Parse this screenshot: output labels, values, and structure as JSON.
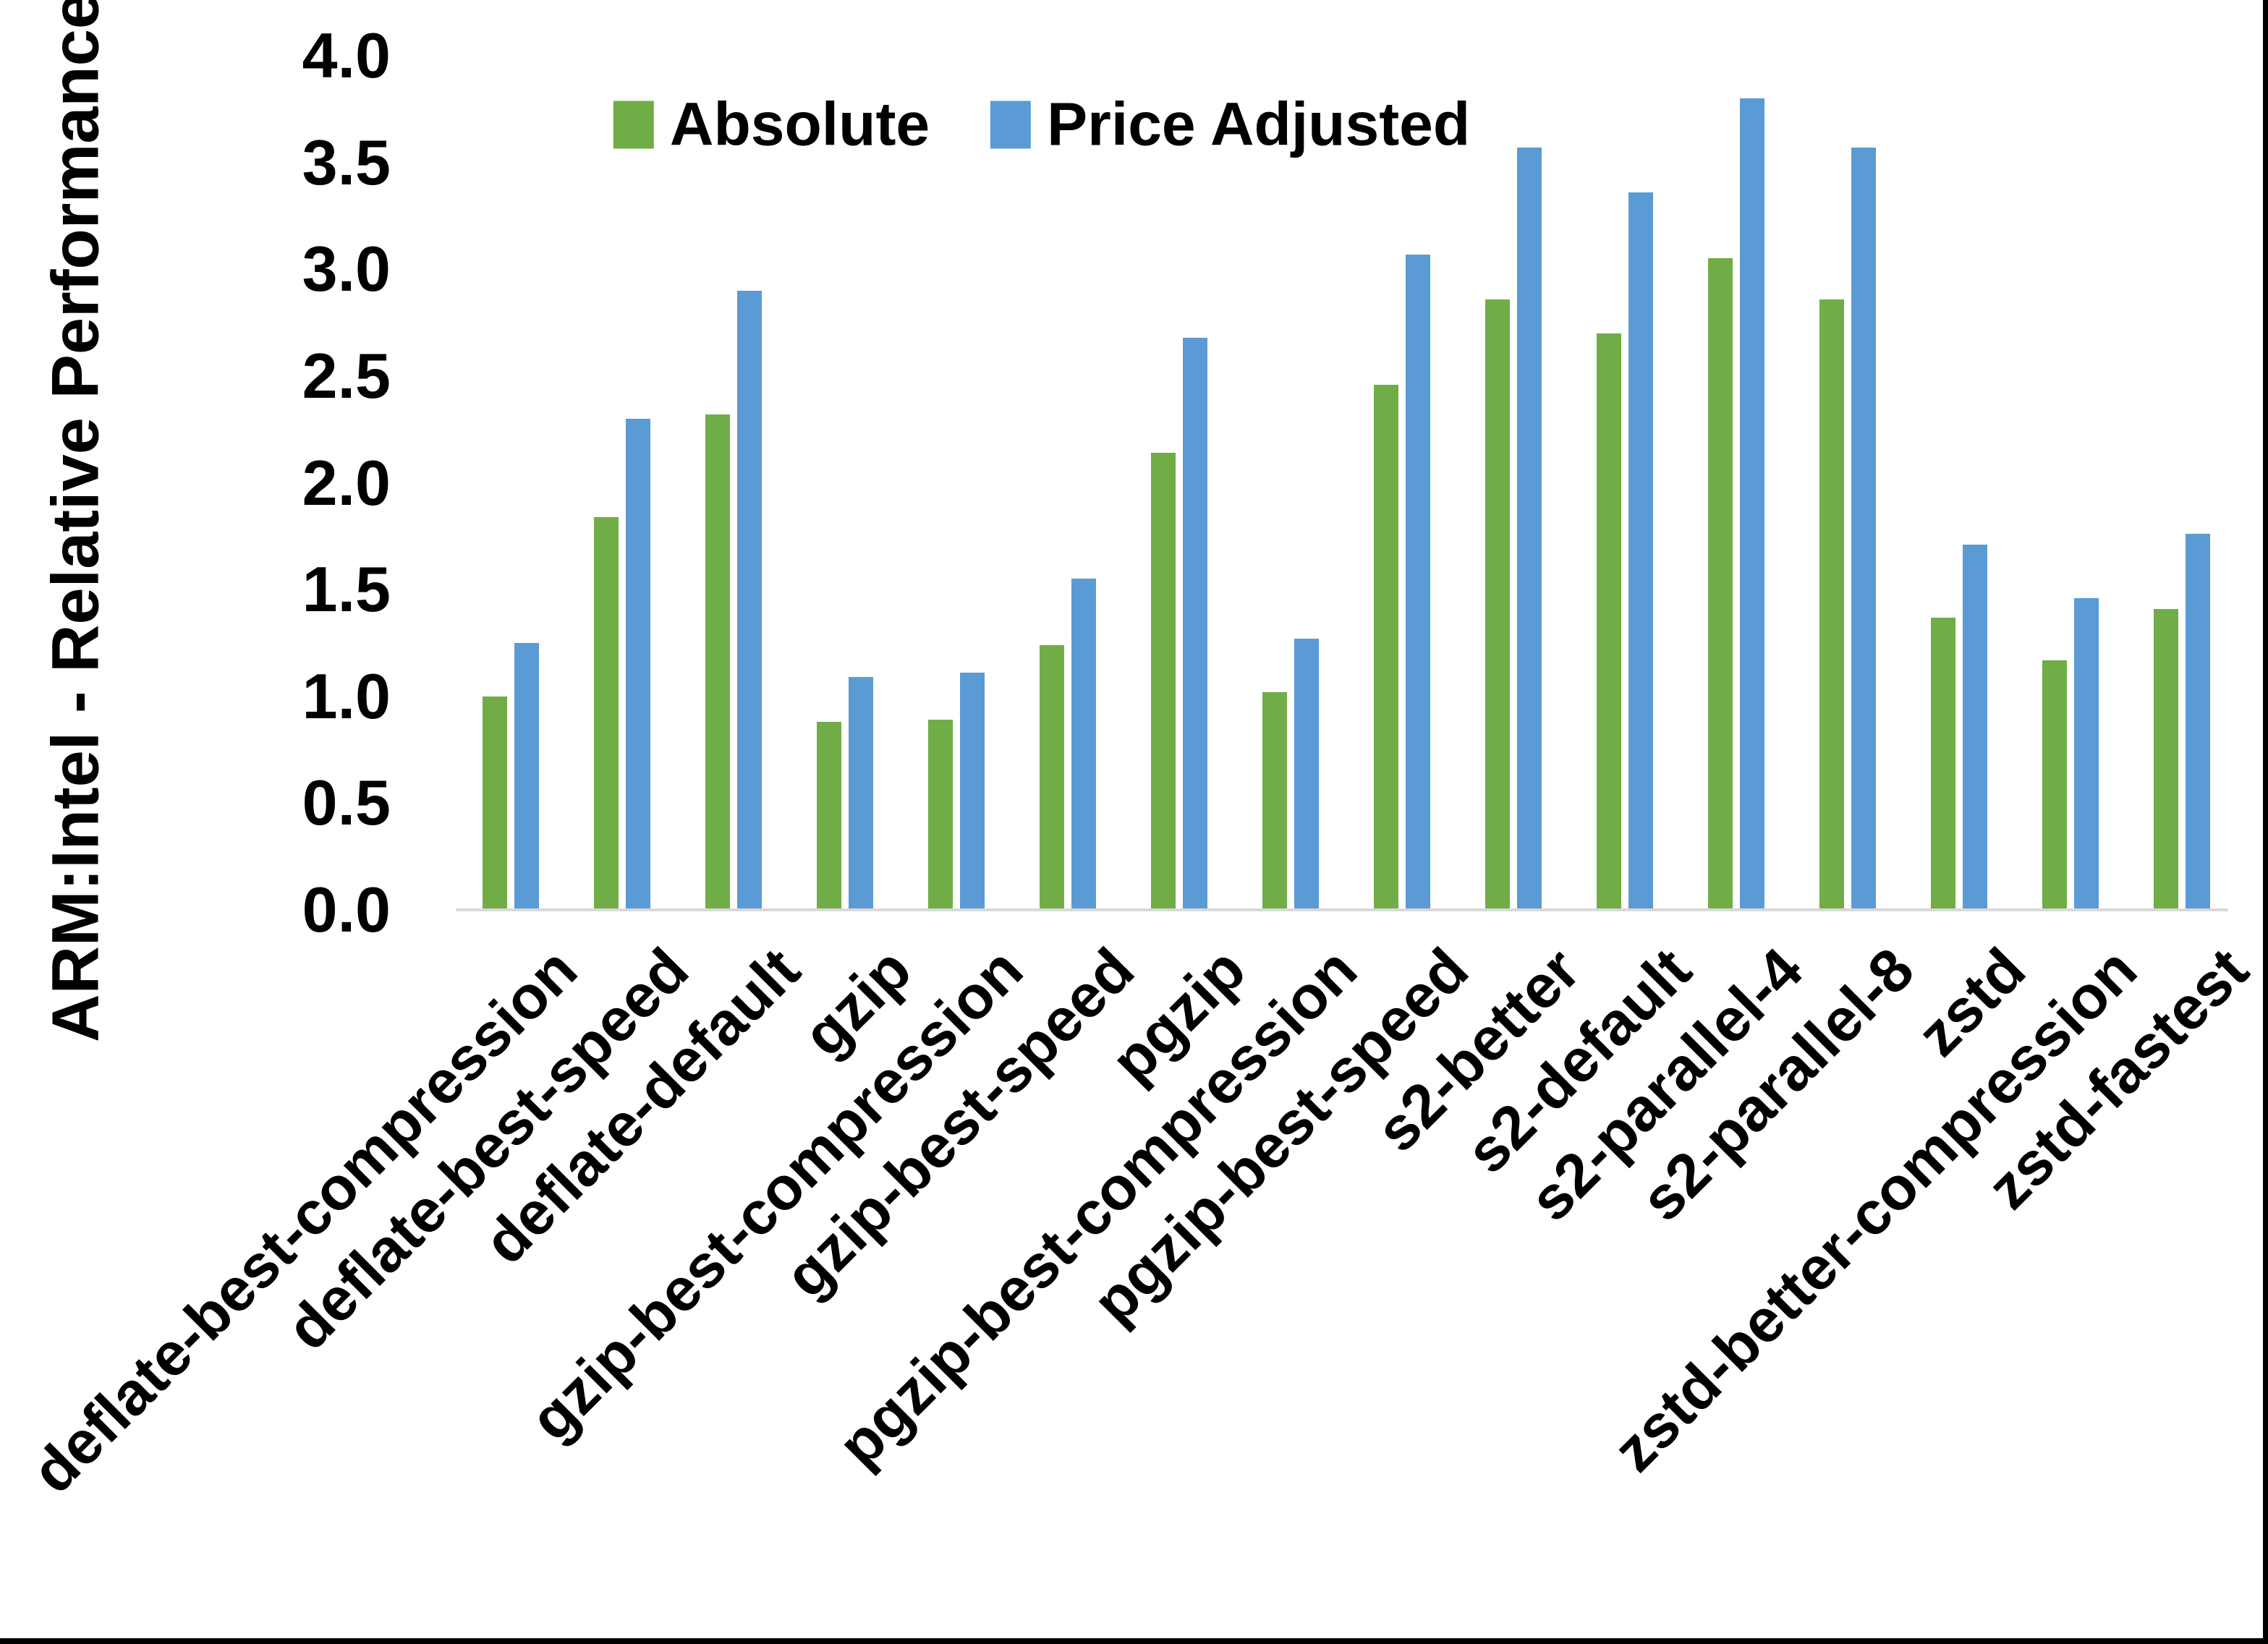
{
  "figure": {
    "y_axis_title": "ARM:Intel - Relative Performance",
    "y_tick_labels": [
      "0.0",
      "0.5",
      "1.0",
      "1.5",
      "2.0",
      "2.5",
      "3.0",
      "3.5",
      "4.0"
    ]
  },
  "chart_data": {
    "type": "bar",
    "title": "",
    "xlabel": "",
    "ylabel": "ARM:Intel - Relative Performance",
    "ylim": [
      0,
      4
    ],
    "y_tick_step": 0.5,
    "grid": false,
    "legend_position": "top-center",
    "categories": [
      "deflate-best-compression",
      "deflate-best-speed",
      "deflate-default",
      "gzip",
      "gzip-best-compression",
      "gzip-best-speed",
      "pgzip",
      "pgzip-best-compression",
      "pgzip-best-speed",
      "s2-better",
      "s2-default",
      "s2-parallel-4",
      "s2-parallel-8",
      "zstd",
      "zstd-better-compression",
      "zstd-fastest"
    ],
    "series": [
      {
        "name": "Absolute",
        "color": "#70AD47",
        "values": [
          1.0,
          1.84,
          2.32,
          0.88,
          0.89,
          1.24,
          2.14,
          1.02,
          2.46,
          2.86,
          2.7,
          3.05,
          2.86,
          1.37,
          1.17,
          1.41
        ]
      },
      {
        "name": "Price Adjusted",
        "color": "#5B9BD5",
        "values": [
          1.25,
          2.3,
          2.9,
          1.09,
          1.11,
          1.55,
          2.68,
          1.27,
          3.07,
          3.57,
          3.36,
          3.8,
          3.57,
          1.71,
          1.46,
          1.76
        ]
      }
    ]
  },
  "colors": {
    "axis_line": "#D9D9D9",
    "text": "#000000",
    "background": "#FFFFFF",
    "frame_border": "#000000"
  }
}
